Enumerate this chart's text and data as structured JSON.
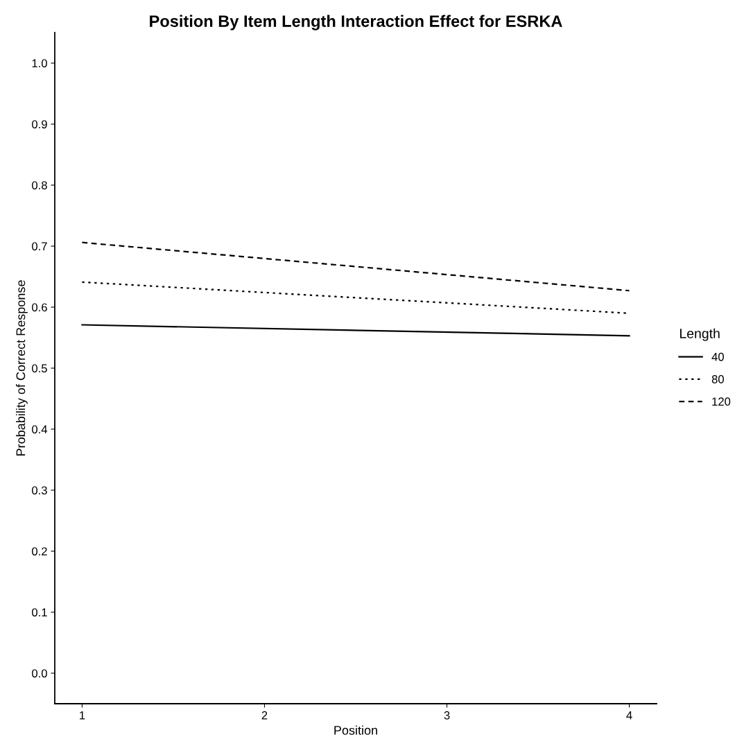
{
  "chart_data": {
    "type": "line",
    "title": "Position By Item Length Interaction Effect for ESRKA",
    "xlabel": "Position",
    "ylabel": "Probability of Correct Response",
    "legend_title": "Length",
    "x": [
      1,
      4
    ],
    "series": [
      {
        "name": "40",
        "color": "#000000",
        "line_style": "solid",
        "values": [
          0.571,
          0.553
        ]
      },
      {
        "name": "80",
        "color": "#000000",
        "line_style": "dotted",
        "values": [
          0.641,
          0.59
        ]
      },
      {
        "name": "120",
        "color": "#000000",
        "line_style": "dashed",
        "values": [
          0.706,
          0.627
        ]
      }
    ],
    "xlim": [
      0.85,
      4.15
    ],
    "xticks": [
      1,
      2,
      3,
      4
    ],
    "ylim": [
      -0.05,
      1.05
    ],
    "yticks": [
      {
        "value": 0,
        "label": "0.0"
      },
      0.1,
      0.2,
      0.3,
      0.4,
      0.5,
      0.6,
      0.7,
      0.8,
      0.9,
      {
        "value": 1,
        "label": "1.0"
      }
    ],
    "grid": false,
    "legend": "right"
  }
}
